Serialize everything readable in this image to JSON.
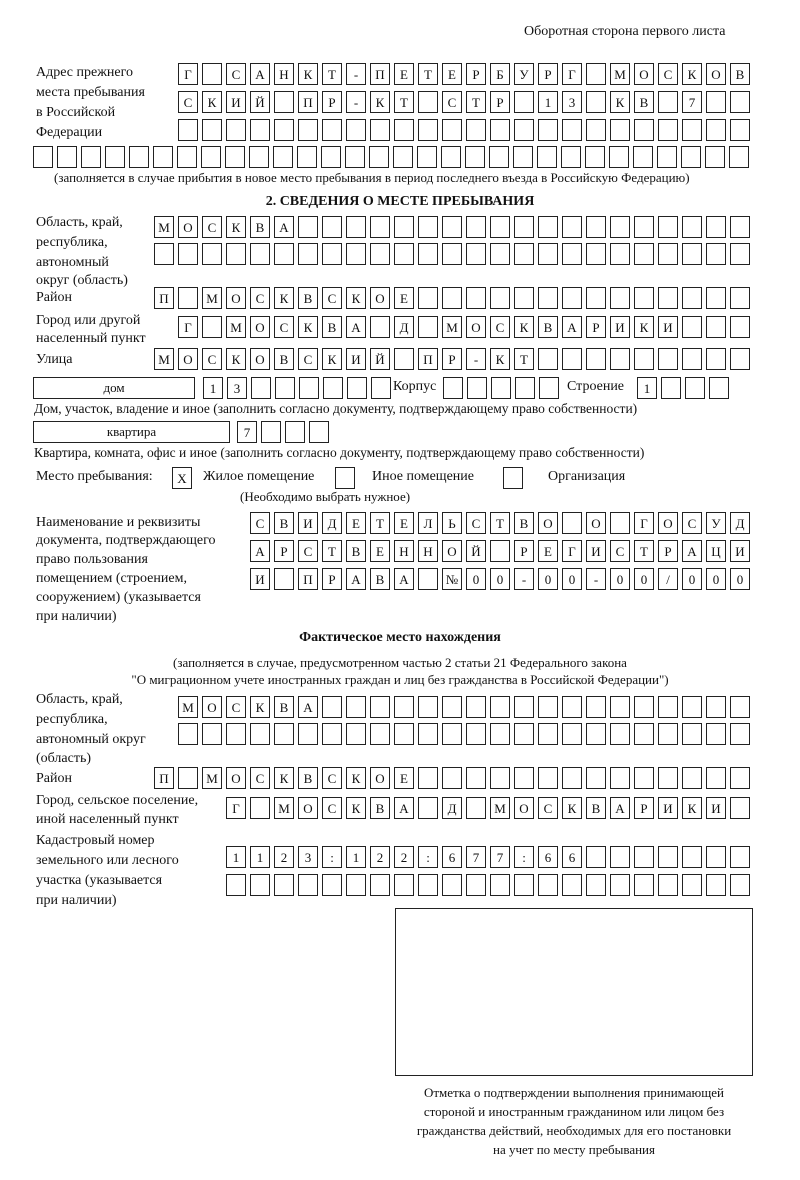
{
  "page_header": "Оборотная сторона первого листа",
  "previous_address": {
    "label": [
      "Адрес прежнего",
      "места пребывания",
      "в Российской",
      "Федерации"
    ],
    "rows": [
      [
        "Г",
        "",
        "С",
        "А",
        "Н",
        "К",
        "Т",
        "-",
        "П",
        "Е",
        "Т",
        "Е",
        "Р",
        "Б",
        "У",
        "Р",
        "Г",
        "",
        "М",
        "О",
        "С",
        "К",
        "О",
        "В"
      ],
      [
        "С",
        "К",
        "И",
        "Й",
        "",
        "П",
        "Р",
        "-",
        "К",
        "Т",
        "",
        "С",
        "Т",
        "Р",
        "",
        "1",
        "3",
        "",
        "К",
        "В",
        "",
        "7",
        "",
        ""
      ],
      [
        "",
        "",
        "",
        "",
        "",
        "",
        "",
        "",
        "",
        "",
        "",
        "",
        "",
        "",
        "",
        "",
        "",
        "",
        "",
        "",
        "",
        "",
        "",
        ""
      ],
      [
        "",
        "",
        "",
        "",
        "",
        "",
        "",
        "",
        "",
        "",
        "",
        "",
        "",
        "",
        "",
        "",
        "",
        "",
        "",
        "",
        "",
        "",
        "",
        "",
        "",
        "",
        "",
        "",
        "",
        ""
      ]
    ],
    "note": "(заполняется в случае прибытия в новое место пребывания в период последнего въезда в Российскую Федерацию)"
  },
  "section2": {
    "heading": "2. СВЕДЕНИЯ О МЕСТЕ ПРЕБЫВАНИЯ",
    "region_label": [
      "Область, край,",
      "республика,",
      "автономный",
      "округ (область)"
    ],
    "region_rows": [
      [
        "М",
        "О",
        "С",
        "К",
        "В",
        "А",
        "",
        "",
        "",
        "",
        "",
        "",
        "",
        "",
        "",
        "",
        "",
        "",
        "",
        "",
        "",
        "",
        "",
        "",
        ""
      ],
      [
        "",
        "",
        "",
        "",
        "",
        "",
        "",
        "",
        "",
        "",
        "",
        "",
        "",
        "",
        "",
        "",
        "",
        "",
        "",
        "",
        "",
        "",
        "",
        "",
        ""
      ]
    ],
    "district_label": "Район",
    "district": [
      "П",
      "",
      "М",
      "О",
      "С",
      "К",
      "В",
      "С",
      "К",
      "О",
      "Е",
      "",
      "",
      "",
      "",
      "",
      "",
      "",
      "",
      "",
      "",
      "",
      "",
      "",
      ""
    ],
    "city_label": [
      "Город или другой",
      "населенный пункт"
    ],
    "city": [
      "Г",
      "",
      "М",
      "О",
      "С",
      "К",
      "В",
      "А",
      "",
      "Д",
      "",
      "М",
      "О",
      "С",
      "К",
      "В",
      "А",
      "Р",
      "И",
      "К",
      "И",
      "",
      "",
      ""
    ],
    "street_label": "Улица",
    "street": [
      "М",
      "О",
      "С",
      "К",
      "О",
      "В",
      "С",
      "К",
      "И",
      "Й",
      "",
      "П",
      "Р",
      "-",
      "К",
      "Т",
      "",
      "",
      "",
      "",
      "",
      "",
      "",
      "",
      ""
    ],
    "house": {
      "type": "дом",
      "number": [
        "1",
        "3",
        "",
        "",
        "",
        "",
        "",
        ""
      ],
      "korpus_label": "Корпус",
      "korpus": [
        "",
        "",
        "",
        "",
        ""
      ],
      "stroenie_label": "Строение",
      "stroenie": [
        "1",
        "",
        "",
        ""
      ],
      "note": "Дом, участок, владение и иное (заполнить согласно документу, подтверждающему право собственности)"
    },
    "apartment": {
      "type": "квартира",
      "number": [
        "7",
        "",
        "",
        ""
      ],
      "note": "Квартира, комната, офис и иное (заполнить согласно документу, подтверждающему право собственности)"
    },
    "stay_place": {
      "label": "Место пребывания:",
      "options": [
        {
          "label": "Жилое помещение",
          "mark": "X"
        },
        {
          "label": "Иное помещение",
          "mark": ""
        },
        {
          "label": "Организация",
          "mark": ""
        }
      ],
      "hint": "(Необходимо выбрать нужное)"
    },
    "document_label": [
      "Наименование и реквизиты",
      "документа, подтверждающего",
      "право пользования",
      "помещением (строением,",
      "сооружением) (указывается",
      "при наличии)"
    ],
    "document_rows": [
      [
        "С",
        "В",
        "И",
        "Д",
        "Е",
        "Т",
        "Е",
        "Л",
        "Ь",
        "С",
        "Т",
        "В",
        "О",
        "",
        "О",
        "",
        "Г",
        "О",
        "С",
        "У",
        "Д"
      ],
      [
        "А",
        "Р",
        "С",
        "Т",
        "В",
        "Е",
        "Н",
        "Н",
        "О",
        "Й",
        "",
        "Р",
        "Е",
        "Г",
        "И",
        "С",
        "Т",
        "Р",
        "А",
        "Ц",
        "И"
      ],
      [
        "И",
        "",
        "П",
        "Р",
        "А",
        "В",
        "А",
        "",
        "№",
        "0",
        "0",
        "-",
        "0",
        "0",
        "-",
        "0",
        "0",
        "/",
        "0",
        "0",
        "0"
      ]
    ]
  },
  "actual_location": {
    "heading": "Фактическое место нахождения",
    "note": [
      "(заполняется в случае, предусмотренном частью 2 статьи 21 Федерального закона",
      "\"О миграционном учете иностранных граждан и лиц без гражданства в Российской Федерации\")"
    ],
    "region_label": [
      "Область, край,",
      "республика,",
      "автономный округ",
      "(область)"
    ],
    "region_rows": [
      [
        "М",
        "О",
        "С",
        "К",
        "В",
        "А",
        "",
        "",
        "",
        "",
        "",
        "",
        "",
        "",
        "",
        "",
        "",
        "",
        "",
        "",
        "",
        "",
        "",
        ""
      ],
      [
        "",
        "",
        "",
        "",
        "",
        "",
        "",
        "",
        "",
        "",
        "",
        "",
        "",
        "",
        "",
        "",
        "",
        "",
        "",
        "",
        "",
        "",
        "",
        ""
      ]
    ],
    "district_label": "Район",
    "district": [
      "П",
      "",
      "М",
      "О",
      "С",
      "К",
      "В",
      "С",
      "К",
      "О",
      "Е",
      "",
      "",
      "",
      "",
      "",
      "",
      "",
      "",
      "",
      "",
      "",
      "",
      "",
      ""
    ],
    "city_label": [
      "Город, сельское поселение,",
      "иной населенный пункт"
    ],
    "city": [
      "Г",
      "",
      "М",
      "О",
      "С",
      "К",
      "В",
      "А",
      "",
      "Д",
      "",
      "М",
      "О",
      "С",
      "К",
      "В",
      "А",
      "Р",
      "И",
      "К",
      "И",
      ""
    ],
    "cadastral_label": [
      "Кадастровый номер",
      "земельного или лесного",
      "участка (указывается",
      "при наличии)"
    ],
    "cadastral_rows": [
      [
        "1",
        "1",
        "2",
        "3",
        ":",
        "1",
        "2",
        "2",
        ":",
        "6",
        "7",
        "7",
        ":",
        "6",
        "6",
        "",
        "",
        "",
        "",
        "",
        "",
        ""
      ],
      [
        "",
        "",
        "",
        "",
        "",
        "",
        "",
        "",
        "",
        "",
        "",
        "",
        "",
        "",
        "",
        "",
        "",
        "",
        "",
        "",
        "",
        ""
      ]
    ]
  },
  "confirmation": {
    "caption": [
      "Отметка о подтверждении выполнения принимающей",
      "стороной и иностранным гражданином или лицом без",
      "гражданства действий, необходимых для его постановки",
      "на учет по месту пребывания"
    ]
  }
}
